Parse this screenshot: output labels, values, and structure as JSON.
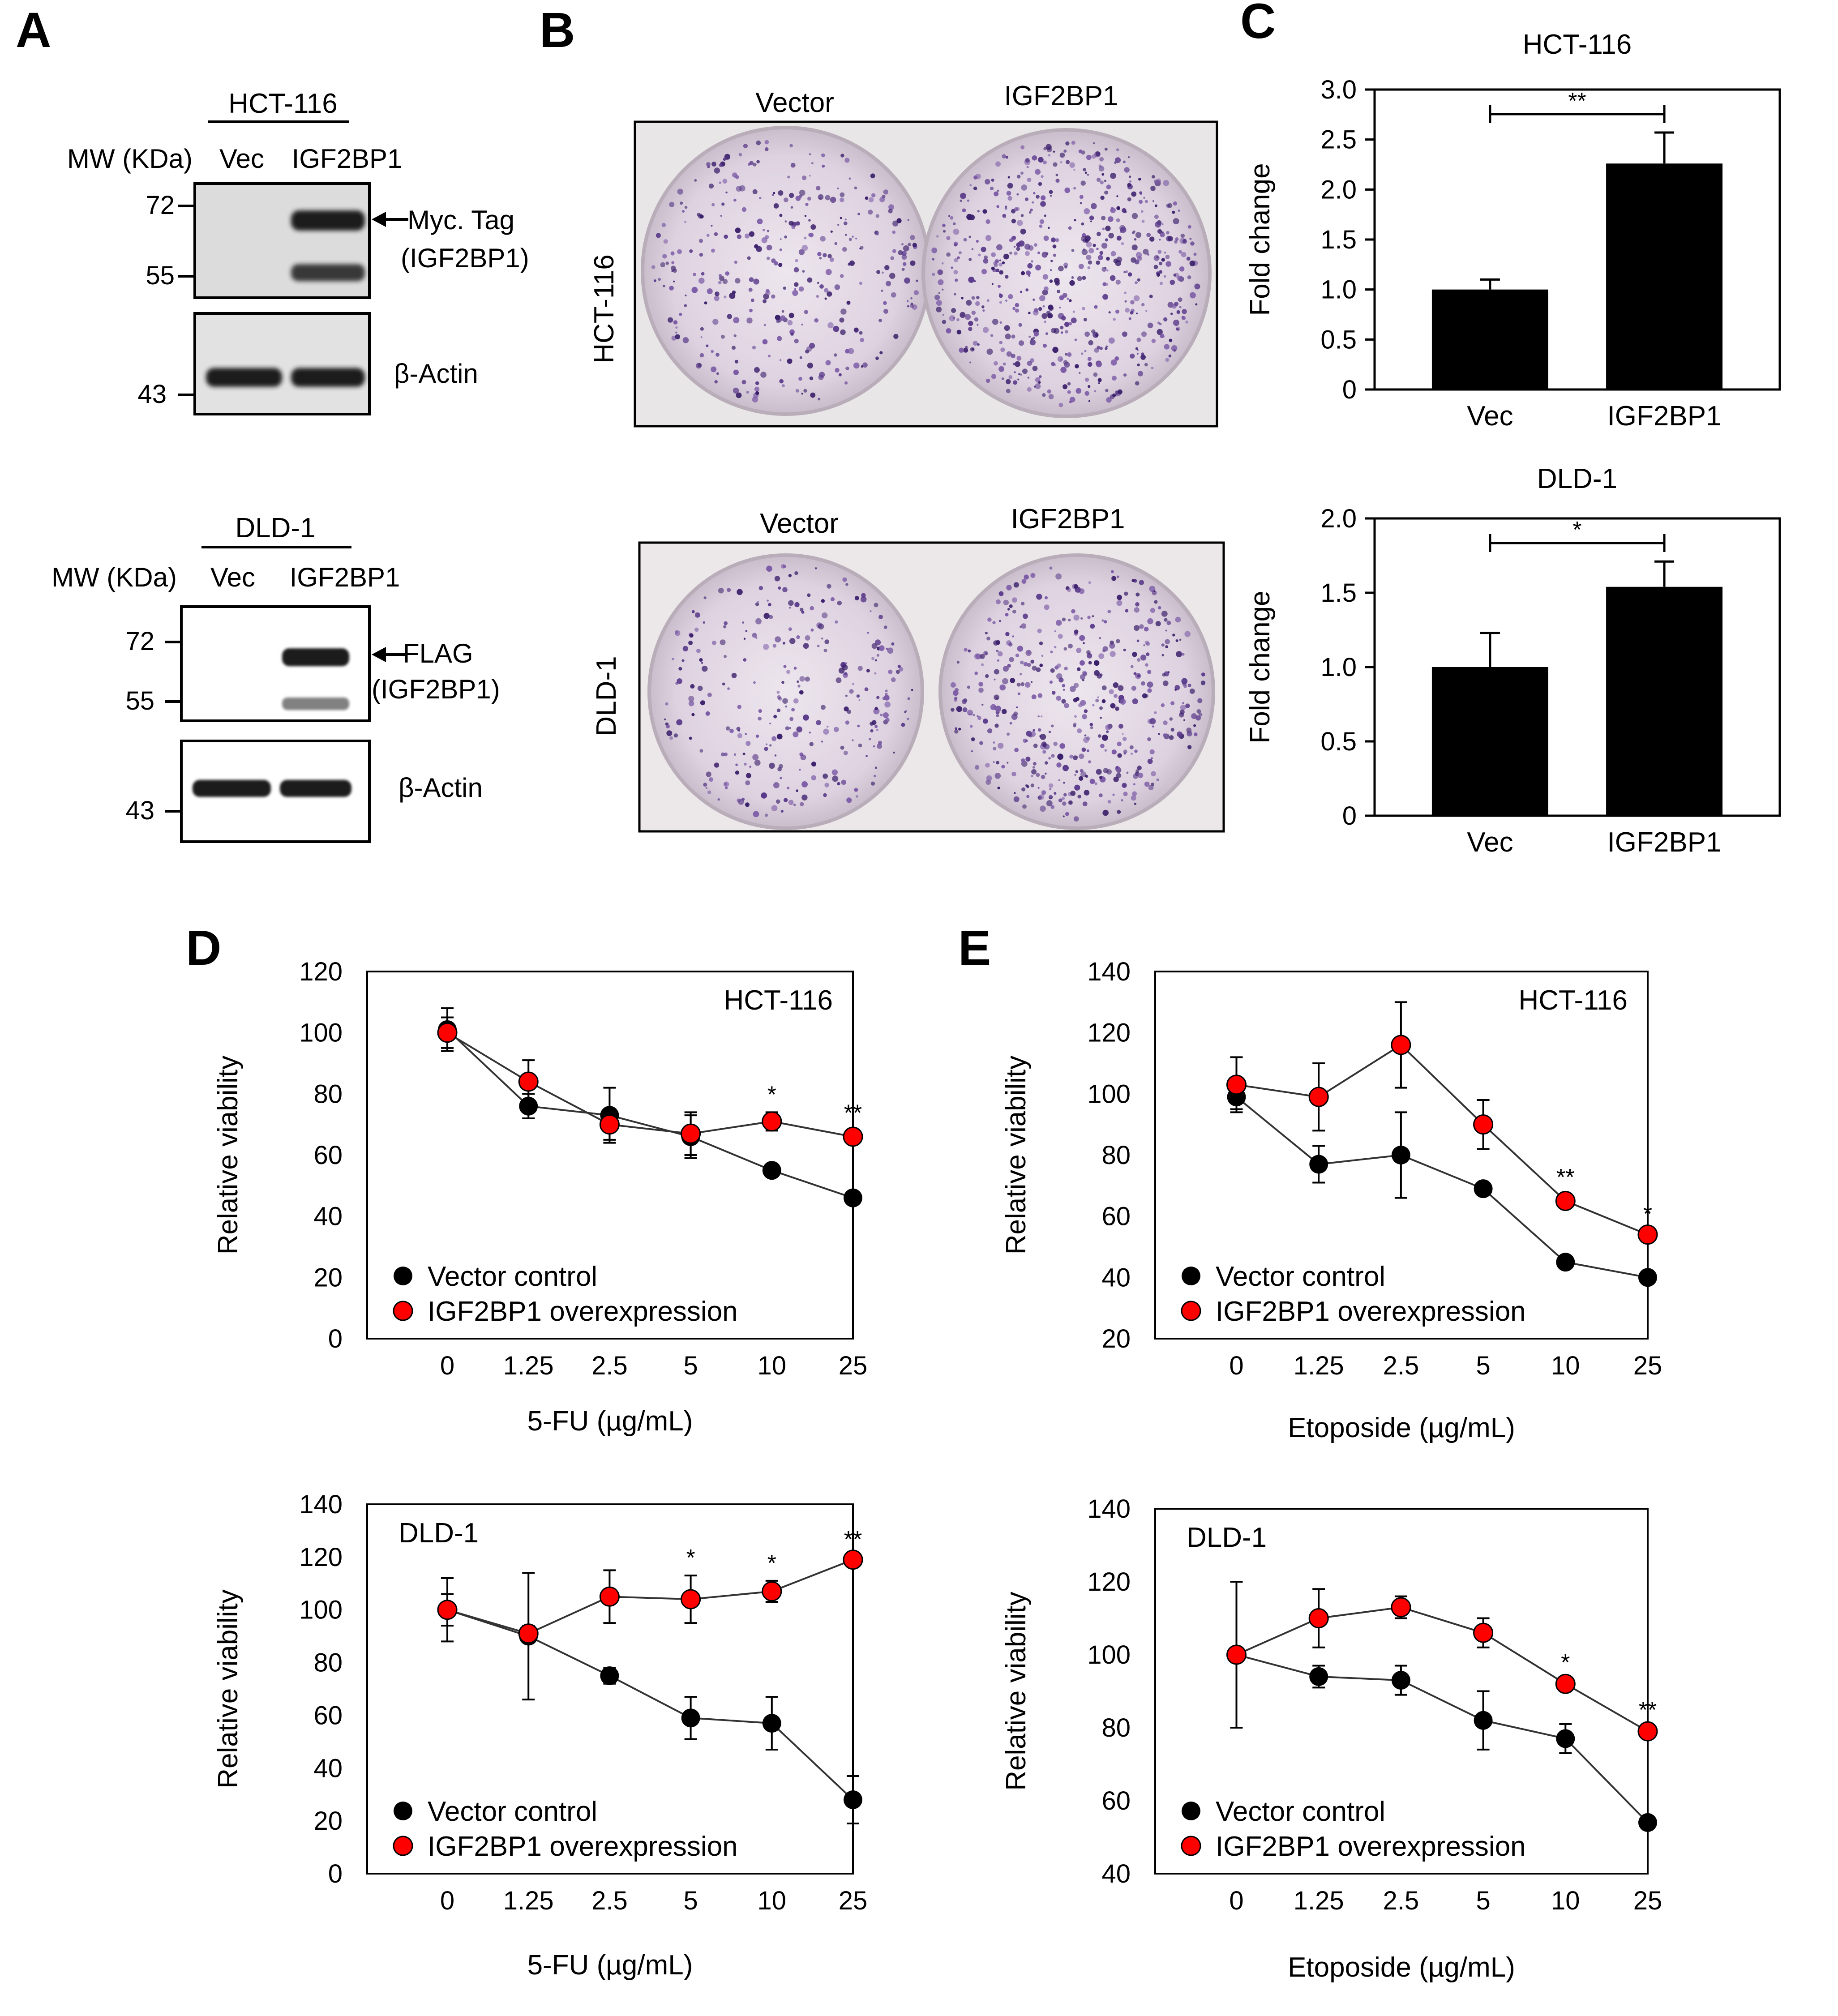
{
  "panel_letters": {
    "a": "A",
    "b": "B",
    "c": "C",
    "d": "D",
    "e": "E"
  },
  "western_blots": [
    {
      "cell_line": "HCT-116",
      "mw_header": "MW (KDa)",
      "lanes": [
        "Vec",
        "IGF2BP1"
      ],
      "upper_markers": [
        "72",
        "55"
      ],
      "lower_marker": "43",
      "tag_label": [
        "Myc. Tag",
        "(IGF2BP1)"
      ],
      "loading_label": "β-Actin",
      "band_intensity": {
        "tag_upper": [
          0.0,
          1.0
        ],
        "tag_lower": [
          0.0,
          0.85
        ],
        "actin": [
          1.0,
          1.0
        ]
      }
    },
    {
      "cell_line": "DLD-1",
      "mw_header": "MW (KDa)",
      "lanes": [
        "Vec",
        "IGF2BP1"
      ],
      "upper_markers": [
        "72",
        "55"
      ],
      "lower_marker": "43",
      "tag_label": [
        "FLAG",
        "(IGF2BP1)"
      ],
      "loading_label": "β-Actin",
      "band_intensity": {
        "tag_upper": [
          0.0,
          1.0
        ],
        "tag_lower": [
          0.0,
          0.55
        ],
        "actin": [
          1.0,
          1.0
        ]
      }
    }
  ],
  "colony_images": [
    {
      "cell_line": "HCT-116",
      "columns": [
        "Vector",
        "IGF2BP1"
      ],
      "colony_density": [
        0.55,
        0.95
      ]
    },
    {
      "cell_line": "DLD-1",
      "columns": [
        "Vector",
        "IGF2BP1"
      ],
      "colony_density": [
        0.45,
        0.75
      ]
    }
  ],
  "chart_data": [
    {
      "id": "C-HCT116",
      "type": "bar",
      "title": "HCT-116",
      "ylabel": "Fold change",
      "categories": [
        "Vec",
        "IGF2BP1"
      ],
      "values": [
        1.0,
        2.26
      ],
      "errors": [
        0.1,
        0.31
      ],
      "ylim": [
        0,
        3.0
      ],
      "yticks": [
        "0",
        "0.5",
        "1.0",
        "1.5",
        "2.0",
        "2.5",
        "3.0"
      ],
      "significance": "**",
      "colors": {
        "bar": "#000000"
      }
    },
    {
      "id": "C-DLD1",
      "type": "bar",
      "title": "DLD-1",
      "ylabel": "Fold change",
      "categories": [
        "Vec",
        "IGF2BP1"
      ],
      "values": [
        1.0,
        1.54
      ],
      "errors": [
        0.23,
        0.17
      ],
      "ylim": [
        0,
        2.0
      ],
      "yticks": [
        "0",
        "0.5",
        "1.0",
        "1.5",
        "2.0"
      ],
      "significance": "*",
      "colors": {
        "bar": "#000000"
      }
    },
    {
      "id": "D-HCT116",
      "type": "line",
      "cell_label": "HCT-116",
      "xlabel": "5-FU (µg/mL)",
      "ylabel": "Relative viability",
      "x": [
        "0",
        "1.25",
        "2.5",
        "5",
        "10",
        "25"
      ],
      "ylim": [
        0,
        120
      ],
      "yticks": [
        "0",
        "20",
        "40",
        "60",
        "80",
        "100",
        "120"
      ],
      "series": [
        {
          "name": "Vector control",
          "color": "#000000",
          "values": [
            101,
            76,
            73,
            66,
            55,
            46
          ],
          "errors": [
            7,
            4,
            9,
            7,
            1,
            1
          ]
        },
        {
          "name": "IGF2BP1 overexpression",
          "color": "#ff0000",
          "values": [
            100,
            84,
            70,
            67,
            71,
            66
          ],
          "errors": [
            5,
            7,
            5,
            7,
            3,
            2
          ]
        }
      ],
      "significance": [
        "",
        "",
        "",
        "",
        "*",
        "**"
      ]
    },
    {
      "id": "E-HCT116",
      "type": "line",
      "cell_label": "HCT-116",
      "xlabel": "Etoposide (µg/mL)",
      "ylabel": "Relative viability",
      "x": [
        "0",
        "1.25",
        "2.5",
        "5",
        "10",
        "25"
      ],
      "ylim": [
        20,
        140
      ],
      "yticks": [
        "20",
        "40",
        "60",
        "80",
        "100",
        "120",
        "140"
      ],
      "series": [
        {
          "name": "Vector control",
          "color": "#000000",
          "values": [
            99,
            77,
            80,
            69,
            45,
            40
          ],
          "errors": [
            4,
            6,
            14,
            1,
            1,
            1
          ]
        },
        {
          "name": "IGF2BP1 overexpression",
          "color": "#ff0000",
          "values": [
            103,
            99,
            116,
            90,
            65,
            54
          ],
          "errors": [
            9,
            11,
            14,
            8,
            2,
            1
          ]
        }
      ],
      "significance": [
        "",
        "",
        "",
        "",
        "**",
        "*"
      ]
    },
    {
      "id": "D-DLD1",
      "type": "line",
      "cell_label": "DLD-1",
      "xlabel": "5-FU (µg/mL)",
      "ylabel": "Relative viability",
      "x": [
        "0",
        "1.25",
        "2.5",
        "5",
        "10",
        "25"
      ],
      "ylim": [
        0,
        140
      ],
      "yticks": [
        "0",
        "20",
        "40",
        "60",
        "80",
        "100",
        "120",
        "140"
      ],
      "series": [
        {
          "name": "Vector control",
          "color": "#000000",
          "values": [
            100,
            90,
            75,
            59,
            57,
            28
          ],
          "errors": [
            12,
            24,
            3,
            8,
            10,
            9
          ]
        },
        {
          "name": "IGF2BP1 overexpression",
          "color": "#ff0000",
          "values": [
            100,
            91,
            105,
            104,
            107,
            119
          ],
          "errors": [
            6,
            3,
            10,
            9,
            4,
            1
          ]
        }
      ],
      "significance": [
        "",
        "",
        "",
        "*",
        "*",
        "**"
      ]
    },
    {
      "id": "E-DLD1",
      "type": "line",
      "cell_label": "DLD-1",
      "xlabel": "Etoposide (µg/mL)",
      "ylabel": "Relative viability",
      "x": [
        "0",
        "1.25",
        "2.5",
        "5",
        "10",
        "25"
      ],
      "ylim": [
        40,
        140
      ],
      "yticks": [
        "40",
        "60",
        "80",
        "100",
        "120",
        "140"
      ],
      "series": [
        {
          "name": "Vector control",
          "color": "#000000",
          "values": [
            100,
            94,
            93,
            82,
            77,
            54
          ],
          "errors": [
            20,
            3,
            4,
            8,
            4,
            1
          ]
        },
        {
          "name": "IGF2BP1 overexpression",
          "color": "#ff0000",
          "values": [
            100,
            110,
            113,
            106,
            92,
            79
          ],
          "errors": [
            20,
            8,
            3,
            4,
            1,
            1
          ]
        }
      ],
      "significance": [
        "",
        "",
        "",
        "",
        "*",
        "**"
      ]
    }
  ]
}
